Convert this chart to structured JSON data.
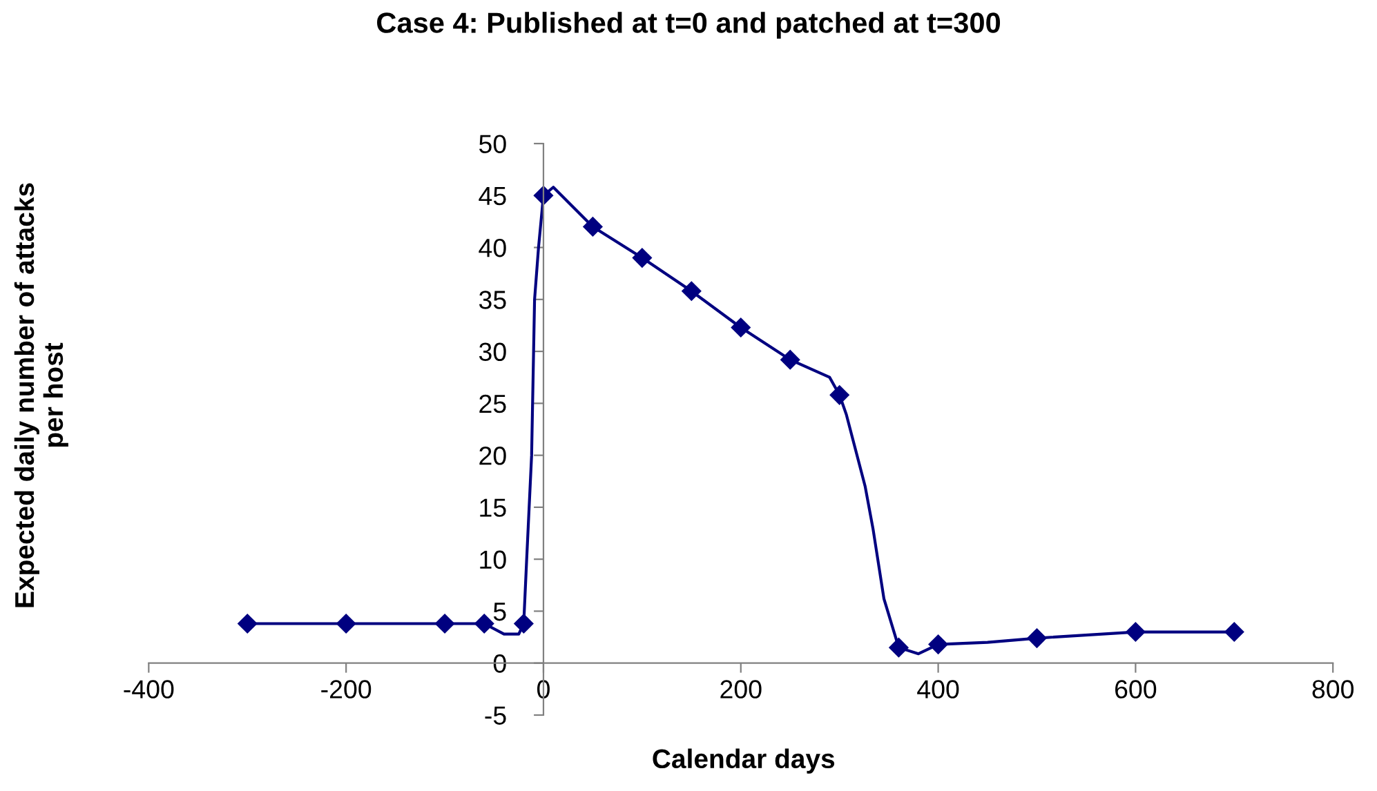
{
  "chart_data": {
    "type": "line",
    "title": "Case 4: Published at t=0 and patched at t=300",
    "xlabel": "Calendar days",
    "ylabel": "Expected daily number of attacks\nper host",
    "series": [
      {
        "color": "#000080",
        "marker": "none",
        "x": [
          -300,
          -200,
          -100,
          -60,
          -40,
          -25,
          -20,
          -17,
          -12,
          -9,
          -5,
          0,
          10,
          50,
          100,
          150,
          200,
          250,
          290,
          300,
          307,
          326,
          334,
          345,
          360,
          380,
          400,
          450,
          500,
          600,
          700
        ],
        "values": [
          3.8,
          3.8,
          3.8,
          3.8,
          2.8,
          2.8,
          3.8,
          10,
          20,
          35,
          40,
          45,
          45.8,
          42,
          39,
          35.8,
          32.3,
          29.2,
          27.5,
          25.8,
          23.9,
          17,
          12.9,
          6.2,
          1.5,
          0.9,
          1.8,
          2.0,
          2.4,
          3,
          3
        ]
      },
      {
        "type": "scatter",
        "color": "#000080",
        "marker": "diamond",
        "x": [
          -300,
          -200,
          -100,
          -60,
          -20,
          0,
          50,
          100,
          150,
          200,
          250,
          300,
          360,
          400,
          500,
          600,
          700
        ],
        "values": [
          3.8,
          3.8,
          3.8,
          3.8,
          3.8,
          45,
          42,
          39,
          35.8,
          32.3,
          29.2,
          25.8,
          1.5,
          1.8,
          2.4,
          3,
          3
        ]
      }
    ],
    "xlim": [
      -400,
      800
    ],
    "xticks": [
      -400,
      -200,
      0,
      200,
      400,
      600,
      800
    ],
    "ylim": [
      -5,
      50
    ],
    "yticks": [
      -5,
      0,
      5,
      10,
      15,
      20,
      25,
      30,
      35,
      40,
      45,
      50
    ],
    "grid": false,
    "legend": false
  }
}
